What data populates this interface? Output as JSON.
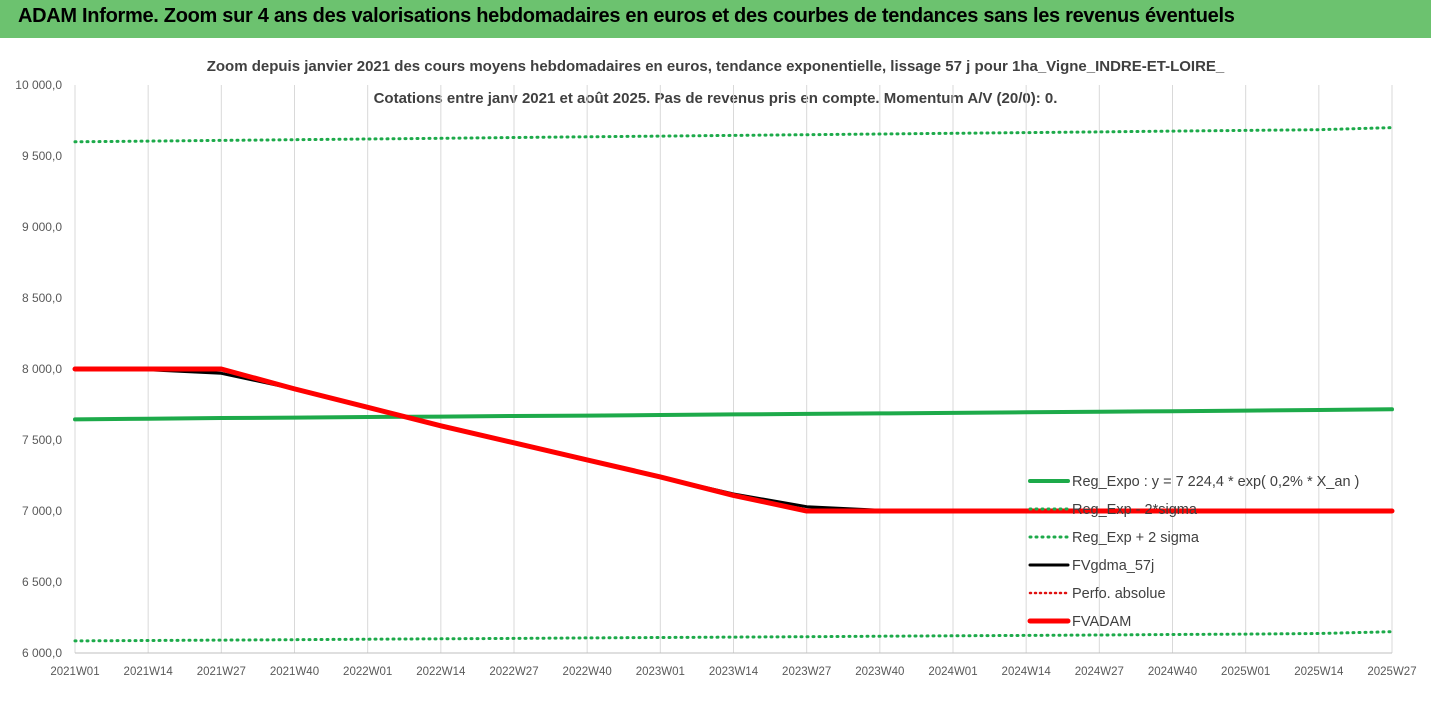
{
  "banner": {
    "title": "ADAM Informe. Zoom sur 4 ans des valorisations hebdomadaires en euros et des courbes de tendances sans les revenus éventuels"
  },
  "colors": {
    "banner": "#6cc26f",
    "reg_expo": "#1daa4a",
    "fvgdma": "#000000",
    "perfo": "#e01010",
    "fvadam": "#ff0000",
    "grid": "#d9d9d9"
  },
  "chart_data": {
    "type": "line",
    "title": "Zoom depuis janvier 2021 des cours moyens hebdomadaires en euros, tendance exponentielle, lissage 57 j pour 1ha_Vigne_INDRE-ET-LOIRE_",
    "subtitle": "Cotations entre janv 2021 et août 2025.  Pas de revenus pris en compte. Momentum A/V (20/0): 0.",
    "xlabel": "",
    "ylabel": "",
    "ylim": [
      6000,
      10000
    ],
    "yticks": [
      "10 000,0",
      "9 500,0",
      "9 000,0",
      "8 500,0",
      "8 000,0",
      "7 500,0",
      "7 000,0",
      "6 500,0",
      "6 000,0"
    ],
    "ytick_values": [
      10000,
      9500,
      9000,
      8500,
      8000,
      7500,
      7000,
      6500,
      6000
    ],
    "x_categories": [
      "2021W01",
      "2021W14",
      "2021W27",
      "2021W40",
      "2022W01",
      "2022W14",
      "2022W27",
      "2022W40",
      "2023W01",
      "2023W14",
      "2023W27",
      "2023W40",
      "2024W01",
      "2024W14",
      "2024W27",
      "2024W40",
      "2025W01",
      "2025W14",
      "2025W27"
    ],
    "grid": "vertical",
    "legend_position": "right",
    "series": [
      {
        "name": "Reg_Expo : y = 7 224,4 * exp( 0,2% *  X_an )",
        "style": "solid",
        "values": [
          7645,
          7650,
          7655,
          7658,
          7662,
          7665,
          7669,
          7672,
          7676,
          7680,
          7684,
          7687,
          7691,
          7695,
          7699,
          7703,
          7707,
          7711,
          7716
        ]
      },
      {
        "name": "Reg_Exp - 2*sigma",
        "style": "dotted",
        "values": [
          6085,
          6088,
          6091,
          6094,
          6097,
          6100,
          6103,
          6106,
          6109,
          6112,
          6115,
          6118,
          6121,
          6124,
          6127,
          6130,
          6133,
          6137,
          6150
        ]
      },
      {
        "name": "Reg_Exp + 2 sigma",
        "style": "dotted",
        "values": [
          9600,
          9605,
          9610,
          9615,
          9620,
          9625,
          9630,
          9635,
          9640,
          9645,
          9650,
          9655,
          9660,
          9665,
          9670,
          9675,
          9680,
          9685,
          9700
        ]
      },
      {
        "name": "FVgdma_57j",
        "style": "solid",
        "values": [
          8000,
          7995,
          7970,
          7860,
          7735,
          7600,
          7480,
          7360,
          7240,
          7120,
          7030,
          7005,
          7000,
          7000,
          7000,
          7000,
          7000,
          7000,
          7000
        ]
      },
      {
        "name": "Perfo. absolue",
        "style": "dotted",
        "values": []
      },
      {
        "name": "FVADAM",
        "style": "solid",
        "values": [
          8000,
          8000,
          8000,
          7860,
          7730,
          7600,
          7480,
          7360,
          7240,
          7110,
          7000,
          7000,
          7000,
          7000,
          7000,
          7000,
          7000,
          7000,
          7000
        ]
      }
    ]
  }
}
